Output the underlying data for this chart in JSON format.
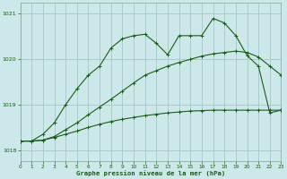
{
  "background_color": "#cce8e8",
  "grid_color": "#aacccc",
  "line_color": "#1a5c1a",
  "title": "Graphe pression niveau de la mer (hPa)",
  "xlim": [
    0,
    23
  ],
  "ylim": [
    1017.75,
    1021.25
  ],
  "yticks": [
    1018,
    1019,
    1020,
    1021
  ],
  "xticks": [
    0,
    1,
    2,
    3,
    4,
    5,
    6,
    7,
    8,
    9,
    10,
    11,
    12,
    13,
    14,
    15,
    16,
    17,
    18,
    19,
    20,
    21,
    22,
    23
  ],
  "series1_x": [
    0,
    1,
    2,
    3,
    4,
    5,
    6,
    7,
    8,
    9,
    10,
    11,
    12,
    13,
    14,
    15,
    16,
    17,
    18,
    19,
    20,
    21,
    22,
    23
  ],
  "series1_y": [
    1018.2,
    1018.2,
    1018.22,
    1018.28,
    1018.35,
    1018.42,
    1018.5,
    1018.57,
    1018.63,
    1018.68,
    1018.72,
    1018.76,
    1018.79,
    1018.82,
    1018.84,
    1018.86,
    1018.87,
    1018.88,
    1018.88,
    1018.88,
    1018.88,
    1018.88,
    1018.88,
    1018.88
  ],
  "series2_x": [
    0,
    1,
    2,
    3,
    4,
    5,
    6,
    7,
    8,
    9,
    10,
    11,
    12,
    13,
    14,
    15,
    16,
    17,
    18,
    19,
    20,
    21,
    22,
    23
  ],
  "series2_y": [
    1018.2,
    1018.2,
    1018.22,
    1018.3,
    1018.45,
    1018.6,
    1018.78,
    1018.95,
    1019.12,
    1019.3,
    1019.48,
    1019.65,
    1019.75,
    1019.85,
    1019.93,
    1020.0,
    1020.07,
    1020.12,
    1020.15,
    1020.18,
    1020.15,
    1020.05,
    1019.85,
    1019.65
  ],
  "series3_x": [
    0,
    1,
    2,
    3,
    4,
    5,
    6,
    7,
    8,
    9,
    10,
    11,
    12,
    13,
    14,
    15,
    16,
    17,
    18,
    19,
    20,
    21,
    22,
    23
  ],
  "series3_y": [
    1018.2,
    1018.2,
    1018.35,
    1018.6,
    1019.0,
    1019.35,
    1019.65,
    1019.85,
    1020.25,
    1020.45,
    1020.52,
    1020.55,
    1020.35,
    1020.1,
    1020.52,
    1020.52,
    1020.52,
    1020.9,
    1020.8,
    1020.52,
    1020.08,
    1019.85,
    1018.82,
    1018.88
  ]
}
